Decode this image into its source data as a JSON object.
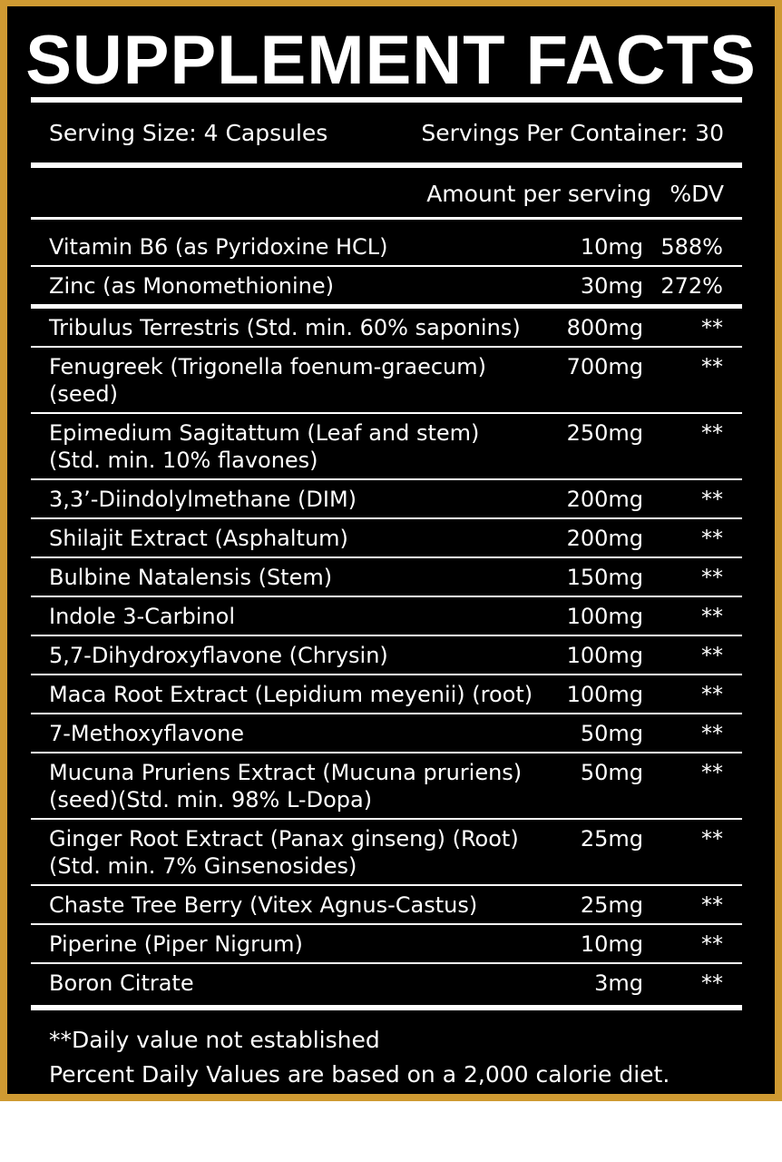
{
  "title": "SUPPLEMENT FACTS",
  "serving_size": "Serving Size: 4 Capsules",
  "servings_per_container": "Servings Per Container: 30",
  "header": {
    "amount": "Amount per serving",
    "dv": "%DV"
  },
  "colors": {
    "border": "#cf9a32",
    "background": "#000000",
    "text": "#ffffff"
  },
  "ingredients": [
    {
      "name": "Vitamin B6 (as Pyridoxine HCL)",
      "amount": "10mg",
      "dv": "588%"
    },
    {
      "name": "Zinc (as Monomethionine)",
      "amount": "30mg",
      "dv": "272%"
    },
    {
      "name": "Tribulus Terrestris (Std. min. 60% saponins)",
      "amount": "800mg",
      "dv": "**"
    },
    {
      "name": "Fenugreek (Trigonella foenum-graecum)\n(seed)",
      "amount": "700mg",
      "dv": "**"
    },
    {
      "name": "Epimedium Sagitattum (Leaf and stem)\n(Std. min. 10% flavones)",
      "amount": "250mg",
      "dv": "**"
    },
    {
      "name": "3,3’-Diindolylmethane (DIM)",
      "amount": "200mg",
      "dv": "**"
    },
    {
      "name": "Shilajit Extract (Asphaltum)",
      "amount": "200mg",
      "dv": "**"
    },
    {
      "name": "Bulbine Natalensis (Stem)",
      "amount": "150mg",
      "dv": "**"
    },
    {
      "name": "Indole 3-Carbinol",
      "amount": "100mg",
      "dv": "**"
    },
    {
      "name": "5,7-Dihydroxyflavone (Chrysin)",
      "amount": "100mg",
      "dv": "**"
    },
    {
      "name": "Maca Root Extract (Lepidium meyenii) (root)",
      "amount": "100mg",
      "dv": "**"
    },
    {
      "name": "7-Methoxyflavone",
      "amount": "50mg",
      "dv": "**"
    },
    {
      "name": "Mucuna Pruriens Extract (Mucuna pruriens)\n(seed)(Std. min. 98% L-Dopa)",
      "amount": "50mg",
      "dv": "**"
    },
    {
      "name": "Ginger Root Extract (Panax ginseng) (Root)\n(Std. min. 7% Ginsenosides)",
      "amount": "25mg",
      "dv": "**"
    },
    {
      "name": "Chaste Tree Berry (Vitex Agnus-Castus)",
      "amount": "25mg",
      "dv": "**"
    },
    {
      "name": "Piperine (Piper Nigrum)",
      "amount": "10mg",
      "dv": "**"
    },
    {
      "name": "Boron Citrate",
      "amount": "3mg",
      "dv": "**"
    }
  ],
  "footnotes": [
    "**Daily value not established",
    "Percent Daily Values are based on a 2,000 calorie diet."
  ]
}
